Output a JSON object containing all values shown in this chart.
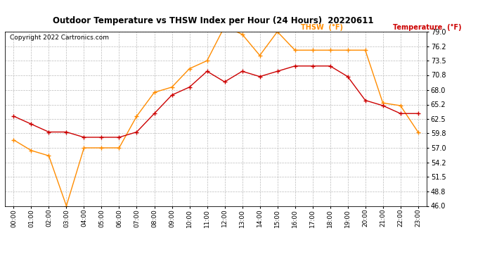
{
  "title": "Outdoor Temperature vs THSW Index per Hour (24 Hours)  20220611",
  "copyright": "Copyright 2022 Cartronics.com",
  "hours": [
    "00:00",
    "01:00",
    "02:00",
    "03:00",
    "04:00",
    "05:00",
    "06:00",
    "07:00",
    "08:00",
    "09:00",
    "10:00",
    "11:00",
    "12:00",
    "13:00",
    "14:00",
    "15:00",
    "16:00",
    "17:00",
    "18:00",
    "19:00",
    "20:00",
    "21:00",
    "22:00",
    "23:00"
  ],
  "temperature": [
    63.0,
    61.5,
    60.0,
    60.0,
    59.0,
    59.0,
    59.0,
    60.0,
    63.5,
    67.0,
    68.5,
    71.5,
    69.5,
    71.5,
    70.5,
    71.5,
    72.5,
    72.5,
    72.5,
    70.5,
    66.0,
    65.0,
    63.5,
    63.5
  ],
  "thsw": [
    58.5,
    56.5,
    55.5,
    46.0,
    57.0,
    57.0,
    57.0,
    63.0,
    67.5,
    68.5,
    72.0,
    73.5,
    80.0,
    78.5,
    74.5,
    79.0,
    75.5,
    75.5,
    75.5,
    75.5,
    75.5,
    65.5,
    65.0,
    60.0
  ],
  "temp_color": "#cc0000",
  "thsw_color": "#ff8c00",
  "ylim_min": 46.0,
  "ylim_max": 79.0,
  "yticks": [
    46.0,
    48.8,
    51.5,
    54.2,
    57.0,
    59.8,
    62.5,
    65.2,
    68.0,
    70.8,
    73.5,
    76.2,
    79.0
  ],
  "legend_thsw": "THSW  (°F)",
  "legend_temp": "Temperature  (°F)",
  "background_color": "#ffffff",
  "grid_color": "#bbbbbb"
}
